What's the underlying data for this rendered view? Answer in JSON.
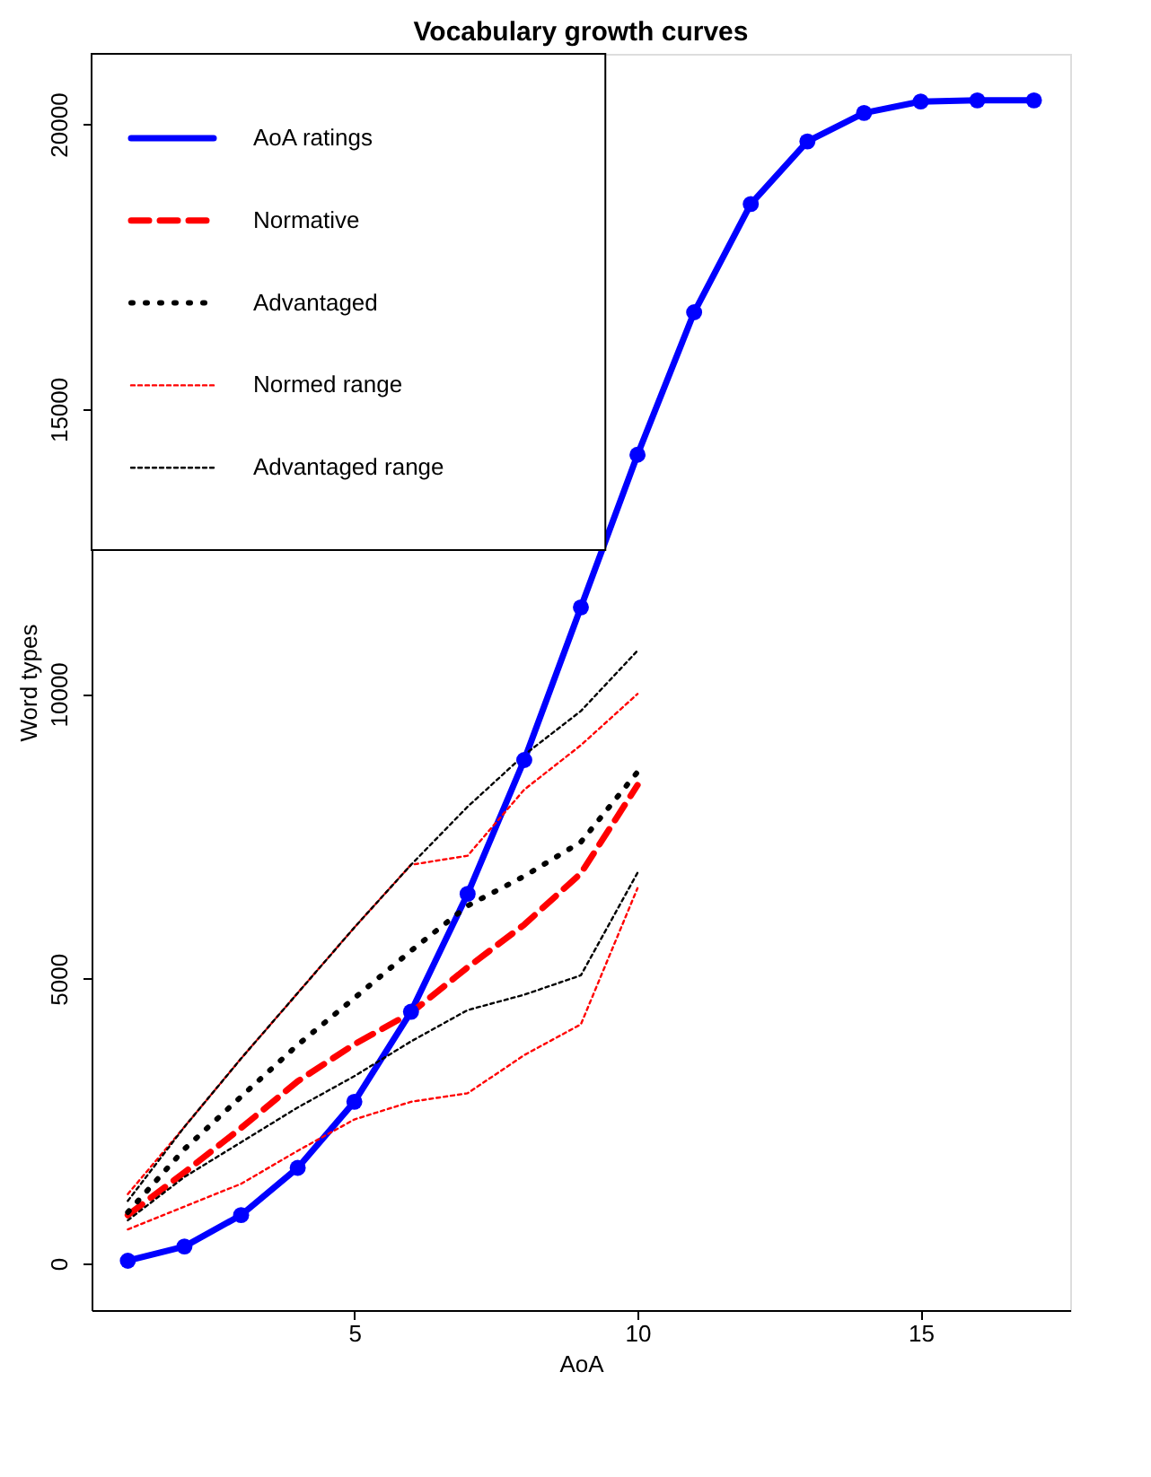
{
  "chart_data": {
    "type": "line",
    "title": "Vocabulary growth curves",
    "xlabel": "AoA",
    "ylabel": "Word types",
    "xlim": [
      0.36,
      17.64
    ],
    "ylim": [
      -817,
      21237
    ],
    "xticks": [
      5,
      10,
      15
    ],
    "yticks": [
      0,
      5000,
      10000,
      15000,
      20000
    ],
    "grid": false,
    "legend": "top left",
    "series": [
      {
        "name": "AoA ratings",
        "color": "#0000ff",
        "line_style": "solid",
        "marker": "circle",
        "x": [
          1,
          2,
          3,
          4,
          5,
          6,
          7,
          8,
          9,
          10,
          11,
          12,
          13,
          14,
          15,
          16,
          17
        ],
        "values": [
          50,
          300,
          850,
          1680,
          2840,
          4420,
          6490,
          8840,
          11520,
          14200,
          16700,
          18600,
          19700,
          20200,
          20400,
          20420,
          20420
        ]
      },
      {
        "name": "Normative",
        "color": "#ff0000",
        "line_style": "dashed",
        "x": [
          1,
          2,
          3,
          4,
          5,
          6,
          7,
          8,
          9,
          10
        ],
        "values": [
          850,
          1600,
          2380,
          3200,
          3850,
          4400,
          5200,
          5950,
          6850,
          8400
        ]
      },
      {
        "name": "Advantaged",
        "color": "#000000",
        "line_style": "dotted",
        "x": [
          1,
          2,
          3,
          4,
          5,
          6,
          7,
          8,
          9,
          10
        ],
        "values": [
          900,
          2010,
          2930,
          3840,
          4660,
          5490,
          6280,
          6800,
          7400,
          8630
        ]
      },
      {
        "name": "Normed range",
        "color": "#ff0000",
        "line_style": "dotted",
        "x": [
          1,
          2,
          3,
          4,
          5,
          6,
          7,
          8,
          9,
          10
        ],
        "values": [
          1220,
          2400,
          3600,
          4750,
          5900,
          7000,
          7160,
          8320,
          9100,
          10000
        ]
      },
      {
        "color": "#ff0000",
        "line_style": "dotted",
        "x": [
          1,
          2,
          3,
          4,
          5,
          6,
          7,
          8,
          9,
          10
        ],
        "values": [
          600,
          1000,
          1400,
          1980,
          2530,
          2840,
          2990,
          3660,
          4200,
          6590
        ]
      },
      {
        "name": "Advantaged range",
        "color": "#000000",
        "line_style": "dotted",
        "x": [
          1,
          2,
          3,
          4,
          5,
          6,
          7,
          8,
          9,
          10
        ],
        "values": [
          1100,
          2400,
          3600,
          4750,
          5900,
          7000,
          8020,
          8930,
          9700,
          10760
        ]
      },
      {
        "color": "#000000",
        "line_style": "dotted",
        "x": [
          1,
          2,
          3,
          4,
          5,
          6,
          7,
          8,
          9,
          10
        ],
        "values": [
          760,
          1520,
          2130,
          2740,
          3290,
          3900,
          4450,
          4720,
          5060,
          6860
        ]
      }
    ]
  }
}
